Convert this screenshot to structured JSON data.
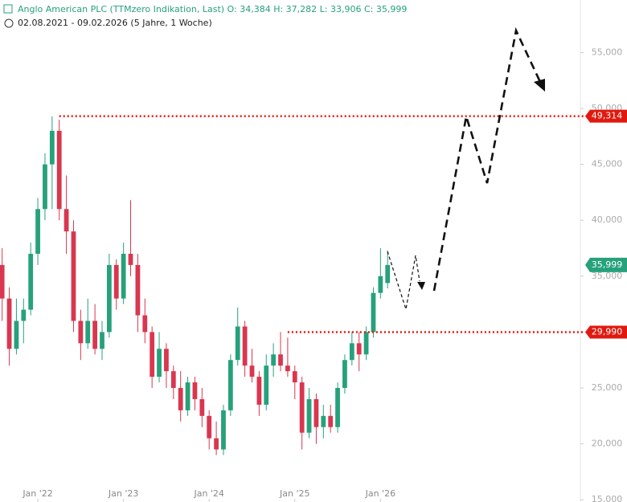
{
  "chart_data": {
    "type": "candlestick",
    "title": "Anglo American PLC (TTMzero Indikation, Last)  O: 34,384  H: 37,282  L: 33,906  C: 35,999",
    "subtitle": "02.08.2021 - 09.02.2026  (5 Jahre, 1 Woche)",
    "up_color": "#26a17b",
    "down_color": "#d9364f",
    "ylim": [
      14800,
      59700
    ],
    "yticks": [
      {
        "value": 15000,
        "label": "15,000"
      },
      {
        "value": 20000,
        "label": "20,000"
      },
      {
        "value": 25000,
        "label": "25,000"
      },
      {
        "value": 30000,
        "label": "30,000"
      },
      {
        "value": 35000,
        "label": "35,000"
      },
      {
        "value": 40000,
        "label": "40,000"
      },
      {
        "value": 45000,
        "label": "45,000"
      },
      {
        "value": 50000,
        "label": "50,000"
      },
      {
        "value": 55000,
        "label": "55,000"
      }
    ],
    "xlim": [
      -0.3,
      81
    ],
    "xticks": [
      {
        "value": 5,
        "label": "Jan '22"
      },
      {
        "value": 17,
        "label": "Jan '23"
      },
      {
        "value": 29,
        "label": "Jan '24"
      },
      {
        "value": 41,
        "label": "Jan '25"
      },
      {
        "value": 53,
        "label": "Jan '26"
      }
    ],
    "open": [
      36000,
      33000,
      28500,
      31000,
      32000,
      37000,
      41000,
      45000,
      48000,
      41000,
      39000,
      31000,
      29000,
      31000,
      28500,
      30000,
      36000,
      33000,
      37000,
      36000,
      31500,
      30000,
      26000,
      28500,
      26500,
      25000,
      23000,
      25500,
      24000,
      22500,
      20500,
      19500,
      23000,
      27500,
      30500,
      27000,
      26000,
      23500,
      27000,
      28000,
      27000,
      26500,
      25500,
      21000,
      24000,
      21500,
      22500,
      21500,
      25000,
      27500,
      29000,
      28000,
      30000,
      33500,
      34384
    ],
    "high": [
      37500,
      34000,
      33000,
      33000,
      38000,
      42000,
      46000,
      49300,
      49000,
      44000,
      40000,
      32000,
      33000,
      32500,
      31000,
      37000,
      36500,
      38000,
      41800,
      37000,
      33000,
      30500,
      30000,
      29000,
      27000,
      26500,
      26000,
      26000,
      25000,
      23000,
      22000,
      23500,
      28000,
      32200,
      31000,
      28500,
      26500,
      28000,
      29000,
      30000,
      29500,
      27000,
      26000,
      25000,
      24500,
      23500,
      23500,
      25500,
      28000,
      30000,
      30000,
      30500,
      34000,
      37500,
      37282
    ],
    "low": [
      31000,
      27000,
      28000,
      29000,
      31500,
      36000,
      40000,
      41000,
      40000,
      37000,
      30000,
      27500,
      28500,
      28000,
      27500,
      29500,
      32000,
      32500,
      35000,
      30000,
      29000,
      25000,
      25500,
      25000,
      24000,
      22000,
      22500,
      23000,
      21500,
      19500,
      19000,
      19000,
      22500,
      27000,
      26000,
      25500,
      22500,
      23000,
      26000,
      26500,
      26000,
      24000,
      19500,
      20500,
      20000,
      20500,
      21000,
      21000,
      24500,
      27000,
      26500,
      27500,
      29500,
      33000,
      33906
    ],
    "close": [
      33000,
      28500,
      31000,
      32000,
      37000,
      41000,
      45000,
      48000,
      41000,
      39000,
      31000,
      29000,
      31000,
      28500,
      30000,
      36000,
      33000,
      37000,
      36000,
      31500,
      30000,
      26000,
      28500,
      26500,
      25000,
      23000,
      25500,
      24000,
      22500,
      20500,
      19500,
      23000,
      27500,
      30500,
      27000,
      26000,
      23500,
      27000,
      28000,
      27000,
      26500,
      25500,
      21000,
      24000,
      21500,
      22500,
      21500,
      25000,
      27500,
      29000,
      28000,
      30000,
      33500,
      35000,
      35999
    ],
    "levels": [
      {
        "value": 49314,
        "label": "49,314",
        "start": 8,
        "color": "#e0190f"
      },
      {
        "value": 29990,
        "label": "29,990",
        "start": 40,
        "color": "#e0190f"
      }
    ],
    "price_marker": {
      "value": 35999,
      "label": "35,999",
      "color": "#26a17b"
    }
  }
}
